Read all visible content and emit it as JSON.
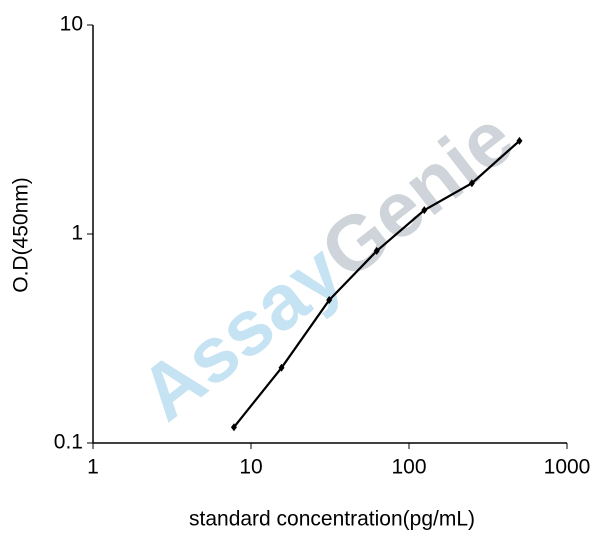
{
  "chart_data": {
    "type": "line",
    "x_label": "standard concentration(pg/mL)",
    "y_label": "O.D(450nm)",
    "x": [
      7.8,
      15.6,
      31.25,
      62.5,
      125,
      250,
      500
    ],
    "series": [
      {
        "color": "#000000",
        "values": [
          0.119,
          0.229,
          0.483,
          0.83,
          1.3,
          1.75,
          2.79
        ]
      }
    ],
    "x_log": true,
    "y_log": true,
    "xlim": [
      1,
      1000
    ],
    "ylim": [
      0.1,
      10
    ],
    "xticks": [
      1,
      10,
      100,
      1000
    ],
    "yticks": [
      0.1,
      1,
      10
    ],
    "grid": false,
    "watermark": [
      {
        "text": "Assay",
        "color": "#c6e3f3"
      },
      {
        "text": "Genie",
        "color": "#cfd4da"
      }
    ]
  }
}
